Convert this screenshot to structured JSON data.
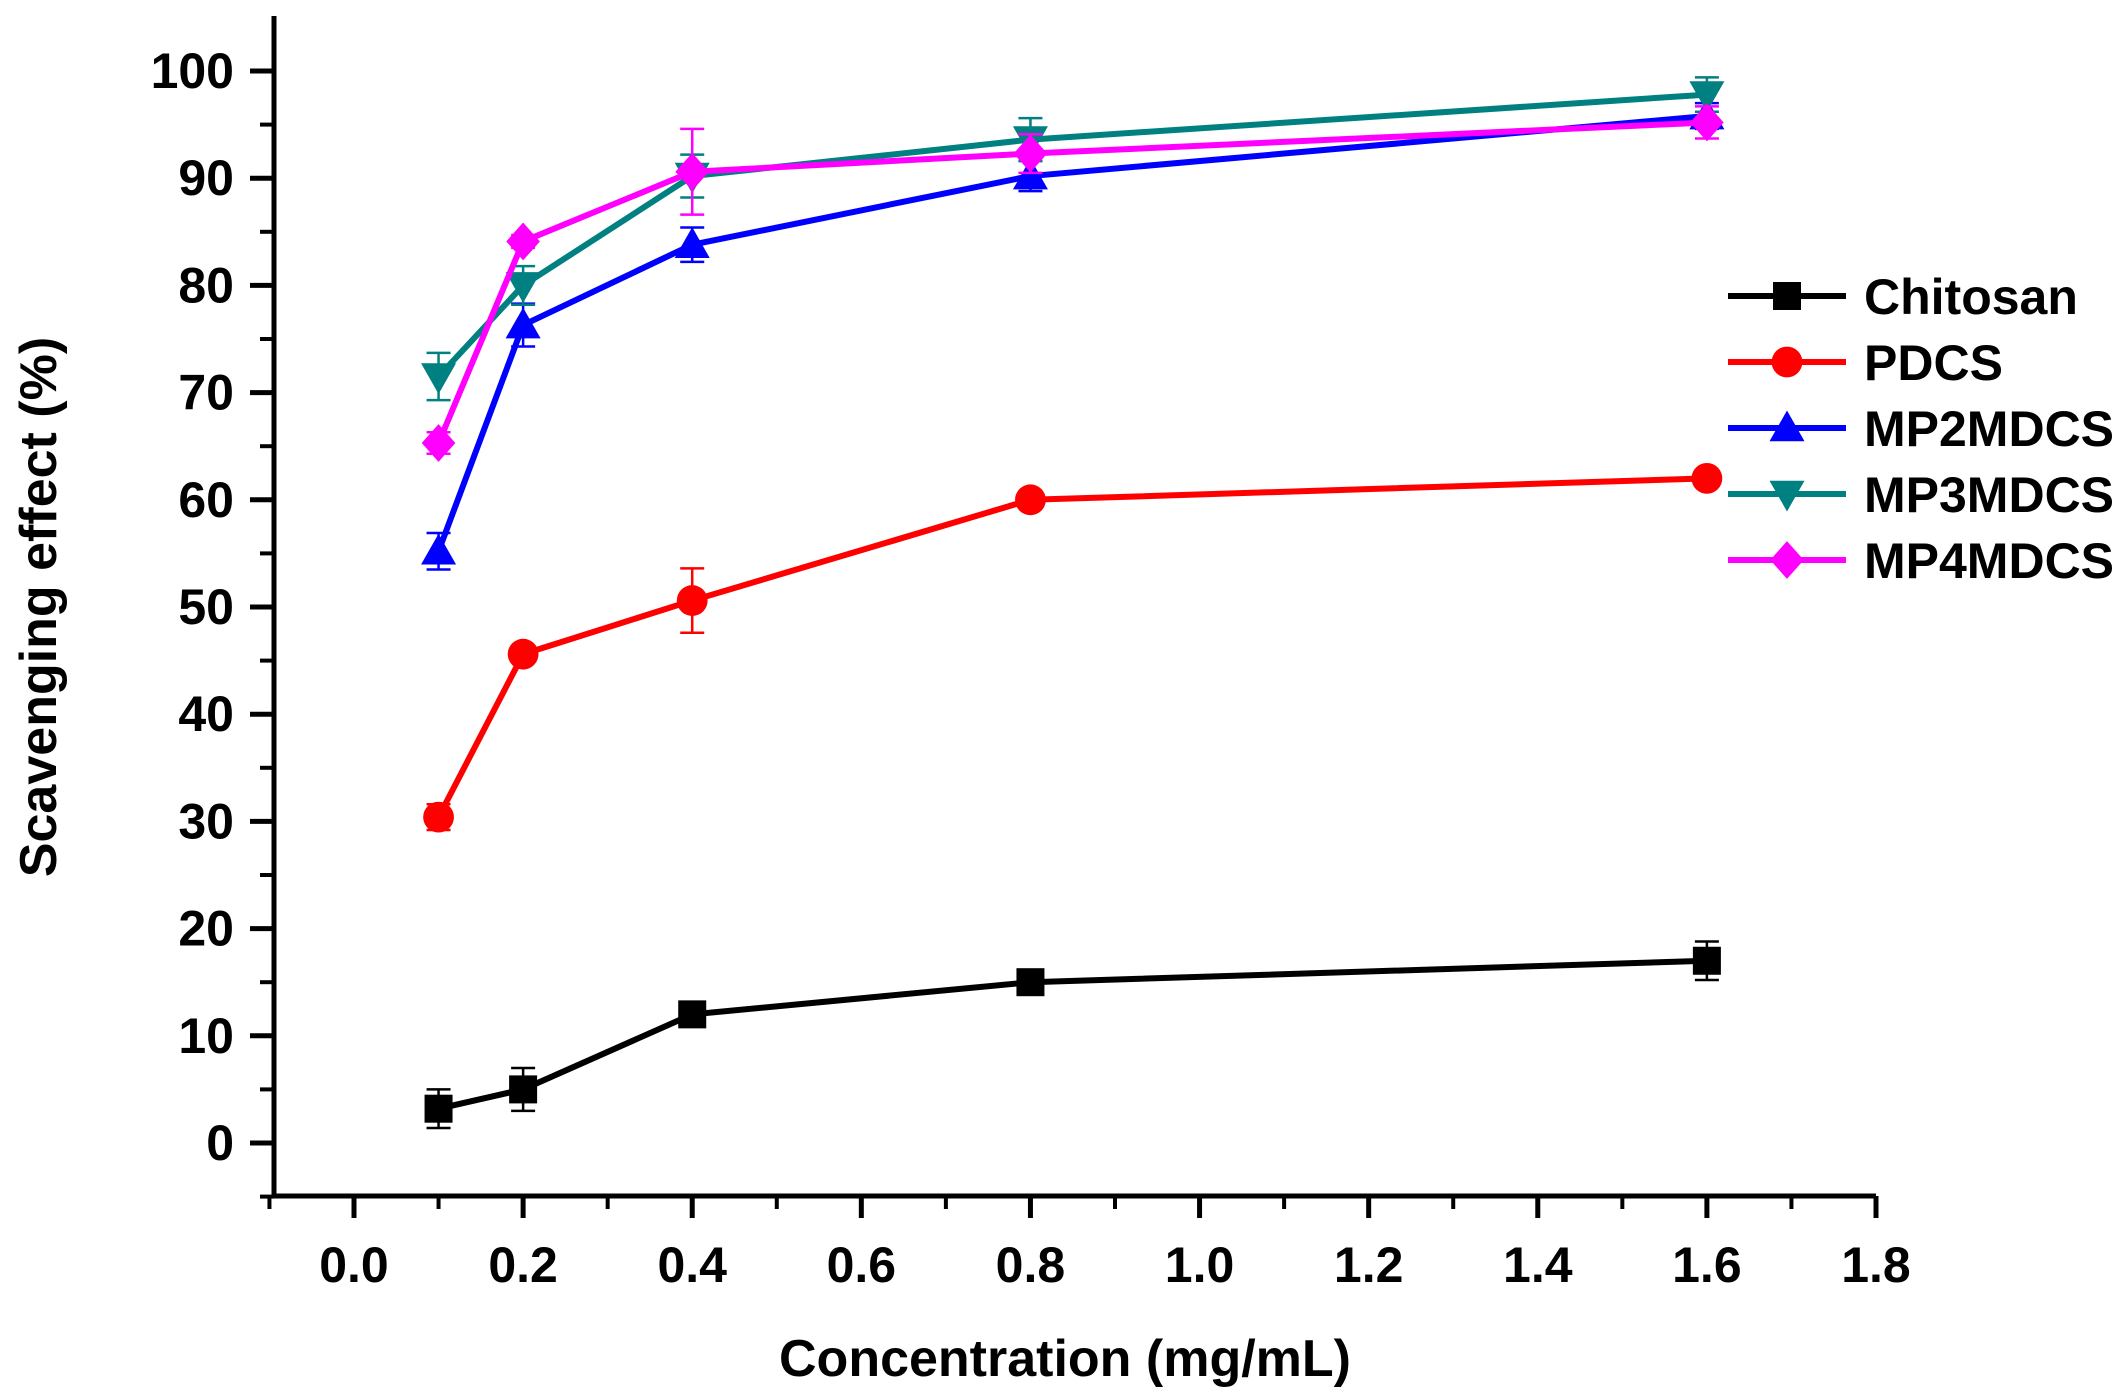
{
  "chart_data": {
    "type": "line",
    "title": "",
    "xlabel": "Concentration (mg/mL)",
    "ylabel": "Scavenging effect (%)",
    "xlim": [
      -0.1,
      1.8
    ],
    "ylim": [
      -5,
      105
    ],
    "xticks": [
      0.0,
      0.2,
      0.4,
      0.6,
      0.8,
      1.0,
      1.2,
      1.4,
      1.6,
      1.8
    ],
    "xtick_labels": [
      "0.0",
      "0.2",
      "0.4",
      "0.6",
      "0.8",
      "1.0",
      "1.2",
      "1.4",
      "1.6",
      "1.8"
    ],
    "yticks": [
      0,
      10,
      20,
      30,
      40,
      50,
      60,
      70,
      80,
      90,
      100
    ],
    "ytick_labels": [
      "0",
      "10",
      "20",
      "30",
      "40",
      "50",
      "60",
      "70",
      "80",
      "90",
      "100"
    ],
    "grid": false,
    "legend_position": "right",
    "x": [
      0.1,
      0.2,
      0.4,
      0.8,
      1.6
    ],
    "series": [
      {
        "name": "Chitosan",
        "color": "#000000",
        "marker": "square",
        "values": [
          3.2,
          5.0,
          12.0,
          15.0,
          17.0
        ],
        "errors": [
          1.8,
          2.0,
          0.8,
          0.8,
          1.8
        ]
      },
      {
        "name": "PDCS",
        "color": "#ff0000",
        "marker": "circle",
        "values": [
          30.4,
          45.6,
          50.6,
          60.0,
          62.0
        ],
        "errors": [
          1.2,
          0.6,
          3.0,
          0.6,
          0.5
        ]
      },
      {
        "name": "MP2MDCS",
        "color": "#0000ff",
        "marker": "triangle-up",
        "values": [
          55.2,
          76.3,
          83.8,
          90.2,
          95.8
        ],
        "errors": [
          1.7,
          2.0,
          1.6,
          1.4,
          1.2
        ]
      },
      {
        "name": "MP3MDCS",
        "color": "#008080",
        "marker": "triangle-down",
        "values": [
          71.5,
          80.0,
          90.2,
          93.6,
          97.8
        ],
        "errors": [
          2.2,
          1.8,
          2.0,
          2.0,
          1.6
        ]
      },
      {
        "name": "MP4MDCS",
        "color": "#ff00ff",
        "marker": "diamond",
        "values": [
          65.3,
          84.1,
          90.6,
          92.3,
          95.2
        ],
        "errors": [
          1.0,
          0.6,
          4.0,
          1.8,
          1.5
        ]
      }
    ]
  }
}
